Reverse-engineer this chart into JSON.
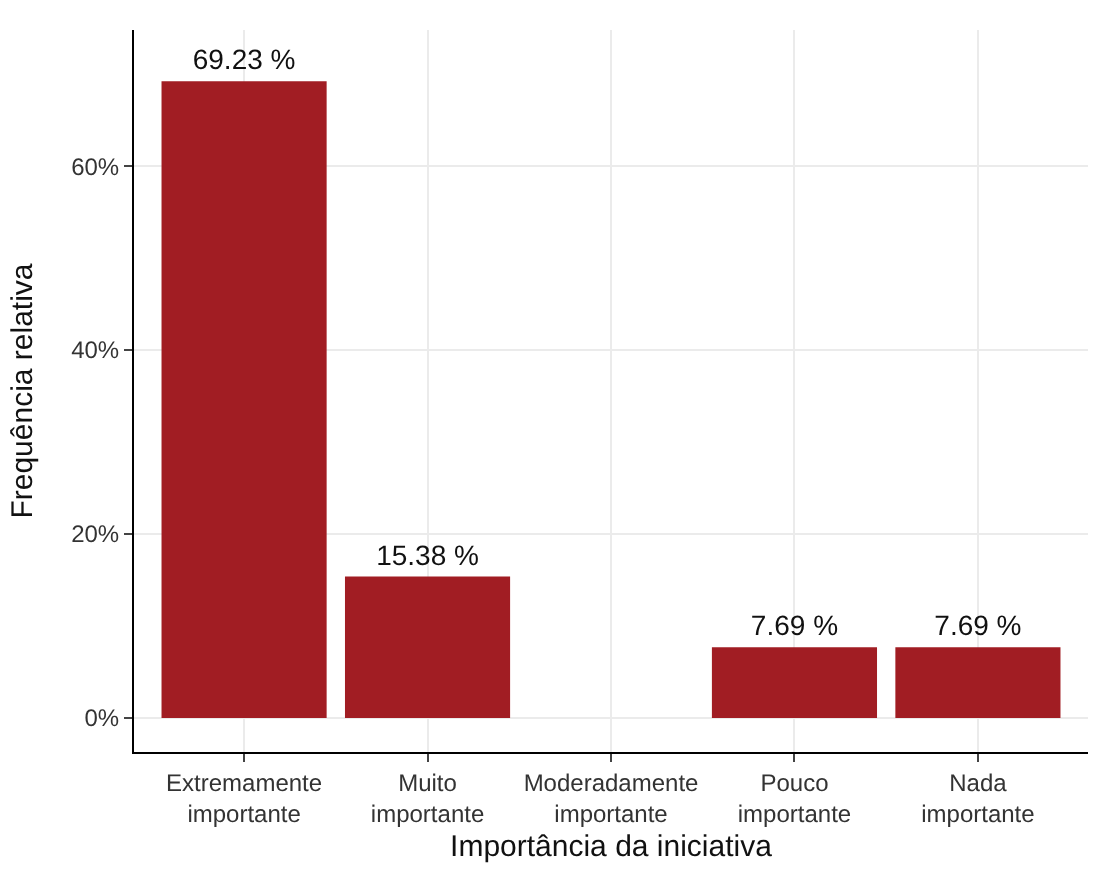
{
  "chart_data": {
    "type": "bar",
    "xlabel": "Importância da iniciativa",
    "ylabel": "Frequência relativa",
    "categories": [
      "Extremamente importante",
      "Muito importante",
      "Moderadamente importante",
      "Pouco importante",
      "Nada importante"
    ],
    "values": [
      69.23,
      15.38,
      0,
      7.69,
      7.69
    ],
    "value_labels": [
      "69.23 %",
      "15.38 %",
      null,
      "7.69 %",
      "7.69 %"
    ],
    "color": "#a11d23",
    "ylim": [
      -3.7,
      74.8
    ],
    "yticks": [
      {
        "value": 0,
        "label": "0%"
      },
      {
        "value": 20,
        "label": "20%"
      },
      {
        "value": 40,
        "label": "40%"
      },
      {
        "value": 60,
        "label": "60%"
      }
    ],
    "grid": true
  }
}
